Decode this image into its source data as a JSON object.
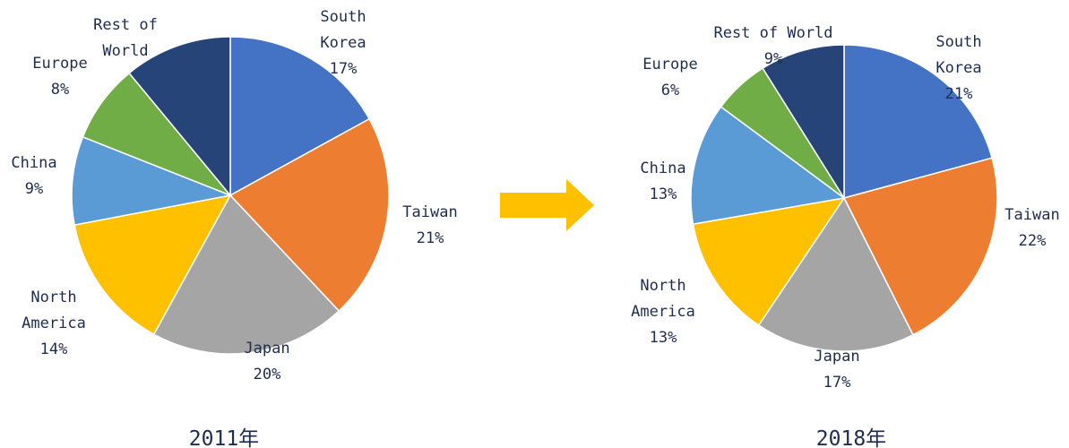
{
  "chart_data": [
    {
      "type": "pie",
      "title": "2011年",
      "categories": [
        "South Korea",
        "Taiwan",
        "Japan",
        "North America",
        "China",
        "Europe",
        "Rest of World"
      ],
      "values": [
        17,
        21,
        20,
        14,
        9,
        8,
        11
      ],
      "value_labels": [
        "17%",
        "21%",
        "20%",
        "14%",
        "9%",
        "8%",
        null
      ],
      "colors": [
        "#4472c4",
        "#ed7d31",
        "#a5a5a5",
        "#ffc000",
        "#5b9bd5",
        "#70ad47",
        "#264478"
      ]
    },
    {
      "type": "pie",
      "title": "2018年",
      "categories": [
        "South Korea",
        "Taiwan",
        "Japan",
        "North America",
        "China",
        "Europe",
        "Rest of World"
      ],
      "values": [
        21,
        22,
        17,
        13,
        13,
        6,
        9
      ],
      "value_labels": [
        "21%",
        "22%",
        "17%",
        "13%",
        "13%",
        "6%",
        "9%"
      ],
      "colors": [
        "#4472c4",
        "#ed7d31",
        "#a5a5a5",
        "#ffc000",
        "#5b9bd5",
        "#70ad47",
        "#264478"
      ]
    }
  ]
}
